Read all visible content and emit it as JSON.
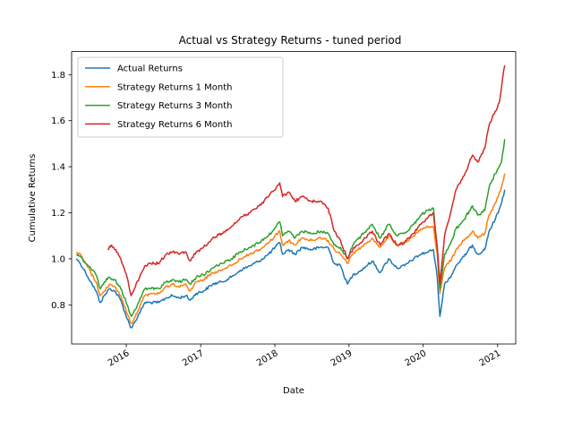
{
  "chart_data": {
    "type": "line",
    "title": "Actual vs Strategy Returns - tuned period",
    "xlabel": "Date",
    "ylabel": "Cumulative Returns",
    "xlim": [
      "2015-04-07",
      "2021-03-31"
    ],
    "ylim": [
      0.63,
      1.9
    ],
    "grid": false,
    "legend_position": "top-left",
    "x_ticks": [
      "2016",
      "2017",
      "2018",
      "2019",
      "2020",
      "2021"
    ],
    "y_ticks": [
      "0.8",
      "1.0",
      "1.2",
      "1.4",
      "1.6",
      "1.8"
    ],
    "series": [
      {
        "name": "Actual Returns",
        "color": "#1f77b4",
        "points": [
          [
            "2015-05-01",
            1.0
          ],
          [
            "2015-05-20",
            0.98
          ],
          [
            "2015-06-15",
            0.94
          ],
          [
            "2015-07-10",
            0.9
          ],
          [
            "2015-08-05",
            0.86
          ],
          [
            "2015-08-25",
            0.81
          ],
          [
            "2015-09-15",
            0.84
          ],
          [
            "2015-10-10",
            0.87
          ],
          [
            "2015-11-05",
            0.86
          ],
          [
            "2015-12-05",
            0.82
          ],
          [
            "2016-01-05",
            0.74
          ],
          [
            "2016-01-25",
            0.7
          ],
          [
            "2016-02-15",
            0.73
          ],
          [
            "2016-03-10",
            0.77
          ],
          [
            "2016-04-01",
            0.81
          ],
          [
            "2016-05-01",
            0.81
          ],
          [
            "2016-06-10",
            0.81
          ],
          [
            "2016-07-15",
            0.83
          ],
          [
            "2016-08-15",
            0.84
          ],
          [
            "2016-09-15",
            0.83
          ],
          [
            "2016-10-20",
            0.84
          ],
          [
            "2016-11-10",
            0.82
          ],
          [
            "2016-12-10",
            0.85
          ],
          [
            "2017-01-15",
            0.86
          ],
          [
            "2017-03-01",
            0.89
          ],
          [
            "2017-04-15",
            0.9
          ],
          [
            "2017-06-01",
            0.92
          ],
          [
            "2017-07-15",
            0.95
          ],
          [
            "2017-09-01",
            0.97
          ],
          [
            "2017-10-15",
            0.99
          ],
          [
            "2017-12-01",
            1.02
          ],
          [
            "2018-01-25",
            1.07
          ],
          [
            "2018-02-08",
            1.02
          ],
          [
            "2018-03-10",
            1.04
          ],
          [
            "2018-04-10",
            1.02
          ],
          [
            "2018-05-15",
            1.05
          ],
          [
            "2018-07-01",
            1.04
          ],
          [
            "2018-08-15",
            1.05
          ],
          [
            "2018-09-20",
            1.05
          ],
          [
            "2018-10-20",
            0.98
          ],
          [
            "2018-11-20",
            0.97
          ],
          [
            "2018-12-24",
            0.89
          ],
          [
            "2019-01-20",
            0.93
          ],
          [
            "2019-03-01",
            0.95
          ],
          [
            "2019-04-25",
            0.99
          ],
          [
            "2019-06-03",
            0.94
          ],
          [
            "2019-07-15",
            1.0
          ],
          [
            "2019-08-25",
            0.96
          ],
          [
            "2019-10-01",
            0.97
          ],
          [
            "2019-11-15",
            1.0
          ],
          [
            "2019-12-20",
            1.02
          ],
          [
            "2020-01-25",
            1.03
          ],
          [
            "2020-02-20",
            1.04
          ],
          [
            "2020-03-10",
            0.92
          ],
          [
            "2020-03-23",
            0.75
          ],
          [
            "2020-04-15",
            0.89
          ],
          [
            "2020-05-20",
            0.93
          ],
          [
            "2020-06-10",
            0.97
          ],
          [
            "2020-07-20",
            1.01
          ],
          [
            "2020-08-30",
            1.06
          ],
          [
            "2020-09-25",
            1.02
          ],
          [
            "2020-10-30",
            1.04
          ],
          [
            "2020-11-20",
            1.12
          ],
          [
            "2020-12-20",
            1.17
          ],
          [
            "2021-01-20",
            1.24
          ],
          [
            "2021-02-05",
            1.3
          ]
        ]
      },
      {
        "name": "Strategy Returns 1 Month",
        "color": "#ff7f0e",
        "points": [
          [
            "2015-05-01",
            1.03
          ],
          [
            "2015-05-20",
            1.02
          ],
          [
            "2015-06-15",
            0.98
          ],
          [
            "2015-07-10",
            0.94
          ],
          [
            "2015-08-05",
            0.9
          ],
          [
            "2015-08-25",
            0.84
          ],
          [
            "2015-09-15",
            0.86
          ],
          [
            "2015-10-10",
            0.89
          ],
          [
            "2015-11-05",
            0.88
          ],
          [
            "2015-12-05",
            0.84
          ],
          [
            "2016-01-05",
            0.76
          ],
          [
            "2016-01-25",
            0.72
          ],
          [
            "2016-02-15",
            0.75
          ],
          [
            "2016-03-10",
            0.8
          ],
          [
            "2016-04-01",
            0.84
          ],
          [
            "2016-05-01",
            0.85
          ],
          [
            "2016-06-10",
            0.85
          ],
          [
            "2016-07-15",
            0.88
          ],
          [
            "2016-08-15",
            0.89
          ],
          [
            "2016-09-15",
            0.88
          ],
          [
            "2016-10-20",
            0.89
          ],
          [
            "2016-11-10",
            0.86
          ],
          [
            "2016-12-10",
            0.9
          ],
          [
            "2017-01-15",
            0.91
          ],
          [
            "2017-03-01",
            0.94
          ],
          [
            "2017-04-15",
            0.95
          ],
          [
            "2017-06-01",
            0.97
          ],
          [
            "2017-07-15",
            1.0
          ],
          [
            "2017-09-01",
            1.02
          ],
          [
            "2017-10-15",
            1.04
          ],
          [
            "2017-12-01",
            1.07
          ],
          [
            "2018-01-25",
            1.12
          ],
          [
            "2018-02-08",
            1.06
          ],
          [
            "2018-03-10",
            1.08
          ],
          [
            "2018-04-10",
            1.06
          ],
          [
            "2018-05-15",
            1.09
          ],
          [
            "2018-07-01",
            1.08
          ],
          [
            "2018-08-15",
            1.09
          ],
          [
            "2018-09-20",
            1.08
          ],
          [
            "2018-10-20",
            1.04
          ],
          [
            "2018-11-20",
            1.02
          ],
          [
            "2018-12-24",
            0.98
          ],
          [
            "2019-01-20",
            1.02
          ],
          [
            "2019-03-01",
            1.05
          ],
          [
            "2019-04-25",
            1.09
          ],
          [
            "2019-06-03",
            1.05
          ],
          [
            "2019-07-15",
            1.1
          ],
          [
            "2019-08-25",
            1.06
          ],
          [
            "2019-10-01",
            1.07
          ],
          [
            "2019-11-15",
            1.1
          ],
          [
            "2019-12-20",
            1.13
          ],
          [
            "2020-01-25",
            1.14
          ],
          [
            "2020-02-20",
            1.14
          ],
          [
            "2020-03-10",
            1.02
          ],
          [
            "2020-03-23",
            0.85
          ],
          [
            "2020-04-15",
            0.96
          ],
          [
            "2020-05-20",
            1.0
          ],
          [
            "2020-06-10",
            1.04
          ],
          [
            "2020-07-20",
            1.08
          ],
          [
            "2020-08-30",
            1.12
          ],
          [
            "2020-09-25",
            1.09
          ],
          [
            "2020-10-30",
            1.11
          ],
          [
            "2020-11-20",
            1.19
          ],
          [
            "2020-12-20",
            1.24
          ],
          [
            "2021-01-20",
            1.31
          ],
          [
            "2021-02-05",
            1.37
          ]
        ]
      },
      {
        "name": "Strategy Returns 3 Month",
        "color": "#2ca02c",
        "points": [
          [
            "2015-05-01",
            1.02
          ],
          [
            "2015-05-20",
            1.01
          ],
          [
            "2015-06-15",
            0.98
          ],
          [
            "2015-07-10",
            0.96
          ],
          [
            "2015-08-05",
            0.93
          ],
          [
            "2015-08-25",
            0.87
          ],
          [
            "2015-09-15",
            0.9
          ],
          [
            "2015-10-10",
            0.92
          ],
          [
            "2015-11-05",
            0.91
          ],
          [
            "2015-12-05",
            0.87
          ],
          [
            "2016-01-05",
            0.8
          ],
          [
            "2016-01-25",
            0.75
          ],
          [
            "2016-02-15",
            0.78
          ],
          [
            "2016-03-10",
            0.83
          ],
          [
            "2016-04-01",
            0.87
          ],
          [
            "2016-05-01",
            0.87
          ],
          [
            "2016-06-10",
            0.87
          ],
          [
            "2016-07-15",
            0.9
          ],
          [
            "2016-08-15",
            0.91
          ],
          [
            "2016-09-15",
            0.9
          ],
          [
            "2016-10-20",
            0.91
          ],
          [
            "2016-11-10",
            0.89
          ],
          [
            "2016-12-10",
            0.92
          ],
          [
            "2017-01-15",
            0.93
          ],
          [
            "2017-03-01",
            0.96
          ],
          [
            "2017-04-15",
            0.98
          ],
          [
            "2017-06-01",
            1.0
          ],
          [
            "2017-07-15",
            1.03
          ],
          [
            "2017-09-01",
            1.05
          ],
          [
            "2017-10-15",
            1.07
          ],
          [
            "2017-12-01",
            1.1
          ],
          [
            "2018-01-25",
            1.16
          ],
          [
            "2018-02-08",
            1.1
          ],
          [
            "2018-03-10",
            1.12
          ],
          [
            "2018-04-10",
            1.09
          ],
          [
            "2018-05-15",
            1.12
          ],
          [
            "2018-07-01",
            1.11
          ],
          [
            "2018-08-15",
            1.12
          ],
          [
            "2018-09-20",
            1.11
          ],
          [
            "2018-10-20",
            1.06
          ],
          [
            "2018-11-20",
            1.05
          ],
          [
            "2018-12-24",
            1.0
          ],
          [
            "2019-01-20",
            1.06
          ],
          [
            "2019-03-01",
            1.1
          ],
          [
            "2019-04-25",
            1.15
          ],
          [
            "2019-06-03",
            1.09
          ],
          [
            "2019-07-15",
            1.15
          ],
          [
            "2019-08-25",
            1.1
          ],
          [
            "2019-10-01",
            1.11
          ],
          [
            "2019-11-15",
            1.15
          ],
          [
            "2019-12-20",
            1.19
          ],
          [
            "2020-01-25",
            1.21
          ],
          [
            "2020-02-20",
            1.22
          ],
          [
            "2020-03-10",
            1.05
          ],
          [
            "2020-03-23",
            0.87
          ],
          [
            "2020-04-15",
            1.02
          ],
          [
            "2020-05-20",
            1.08
          ],
          [
            "2020-06-10",
            1.13
          ],
          [
            "2020-07-20",
            1.17
          ],
          [
            "2020-08-30",
            1.23
          ],
          [
            "2020-09-25",
            1.19
          ],
          [
            "2020-10-30",
            1.21
          ],
          [
            "2020-11-20",
            1.31
          ],
          [
            "2020-12-20",
            1.37
          ],
          [
            "2021-01-20",
            1.42
          ],
          [
            "2021-02-05",
            1.52
          ]
        ]
      },
      {
        "name": "Strategy Returns 6 Month",
        "color": "#d62728",
        "points": [
          [
            "2015-10-01",
            1.04
          ],
          [
            "2015-10-20",
            1.06
          ],
          [
            "2015-11-10",
            1.04
          ],
          [
            "2015-12-05",
            1.0
          ],
          [
            "2016-01-05",
            0.92
          ],
          [
            "2016-01-25",
            0.84
          ],
          [
            "2016-02-15",
            0.88
          ],
          [
            "2016-03-10",
            0.93
          ],
          [
            "2016-04-01",
            0.97
          ],
          [
            "2016-05-01",
            0.98
          ],
          [
            "2016-06-10",
            0.98
          ],
          [
            "2016-07-15",
            1.02
          ],
          [
            "2016-08-15",
            1.03
          ],
          [
            "2016-09-15",
            1.02
          ],
          [
            "2016-10-20",
            1.03
          ],
          [
            "2016-11-10",
            0.99
          ],
          [
            "2016-12-10",
            1.03
          ],
          [
            "2017-01-15",
            1.05
          ],
          [
            "2017-03-01",
            1.09
          ],
          [
            "2017-04-15",
            1.11
          ],
          [
            "2017-06-01",
            1.14
          ],
          [
            "2017-07-15",
            1.18
          ],
          [
            "2017-09-01",
            1.2
          ],
          [
            "2017-10-15",
            1.23
          ],
          [
            "2017-12-01",
            1.27
          ],
          [
            "2018-01-25",
            1.33
          ],
          [
            "2018-02-08",
            1.27
          ],
          [
            "2018-03-10",
            1.29
          ],
          [
            "2018-04-10",
            1.25
          ],
          [
            "2018-05-15",
            1.27
          ],
          [
            "2018-07-01",
            1.25
          ],
          [
            "2018-08-15",
            1.25
          ],
          [
            "2018-09-20",
            1.22
          ],
          [
            "2018-10-20",
            1.12
          ],
          [
            "2018-11-20",
            1.08
          ],
          [
            "2018-12-24",
            1.0
          ],
          [
            "2019-01-20",
            1.04
          ],
          [
            "2019-03-01",
            1.07
          ],
          [
            "2019-04-25",
            1.12
          ],
          [
            "2019-06-03",
            1.06
          ],
          [
            "2019-07-15",
            1.11
          ],
          [
            "2019-08-25",
            1.06
          ],
          [
            "2019-10-01",
            1.07
          ],
          [
            "2019-11-15",
            1.11
          ],
          [
            "2019-12-20",
            1.15
          ],
          [
            "2020-01-25",
            1.18
          ],
          [
            "2020-02-20",
            1.2
          ],
          [
            "2020-03-10",
            1.05
          ],
          [
            "2020-03-23",
            0.89
          ],
          [
            "2020-04-15",
            1.1
          ],
          [
            "2020-05-20",
            1.22
          ],
          [
            "2020-06-10",
            1.3
          ],
          [
            "2020-07-20",
            1.36
          ],
          [
            "2020-08-30",
            1.45
          ],
          [
            "2020-09-25",
            1.42
          ],
          [
            "2020-10-30",
            1.48
          ],
          [
            "2020-11-20",
            1.58
          ],
          [
            "2020-12-20",
            1.64
          ],
          [
            "2021-01-10",
            1.68
          ],
          [
            "2021-01-25",
            1.78
          ],
          [
            "2021-02-05",
            1.84
          ]
        ]
      }
    ]
  }
}
